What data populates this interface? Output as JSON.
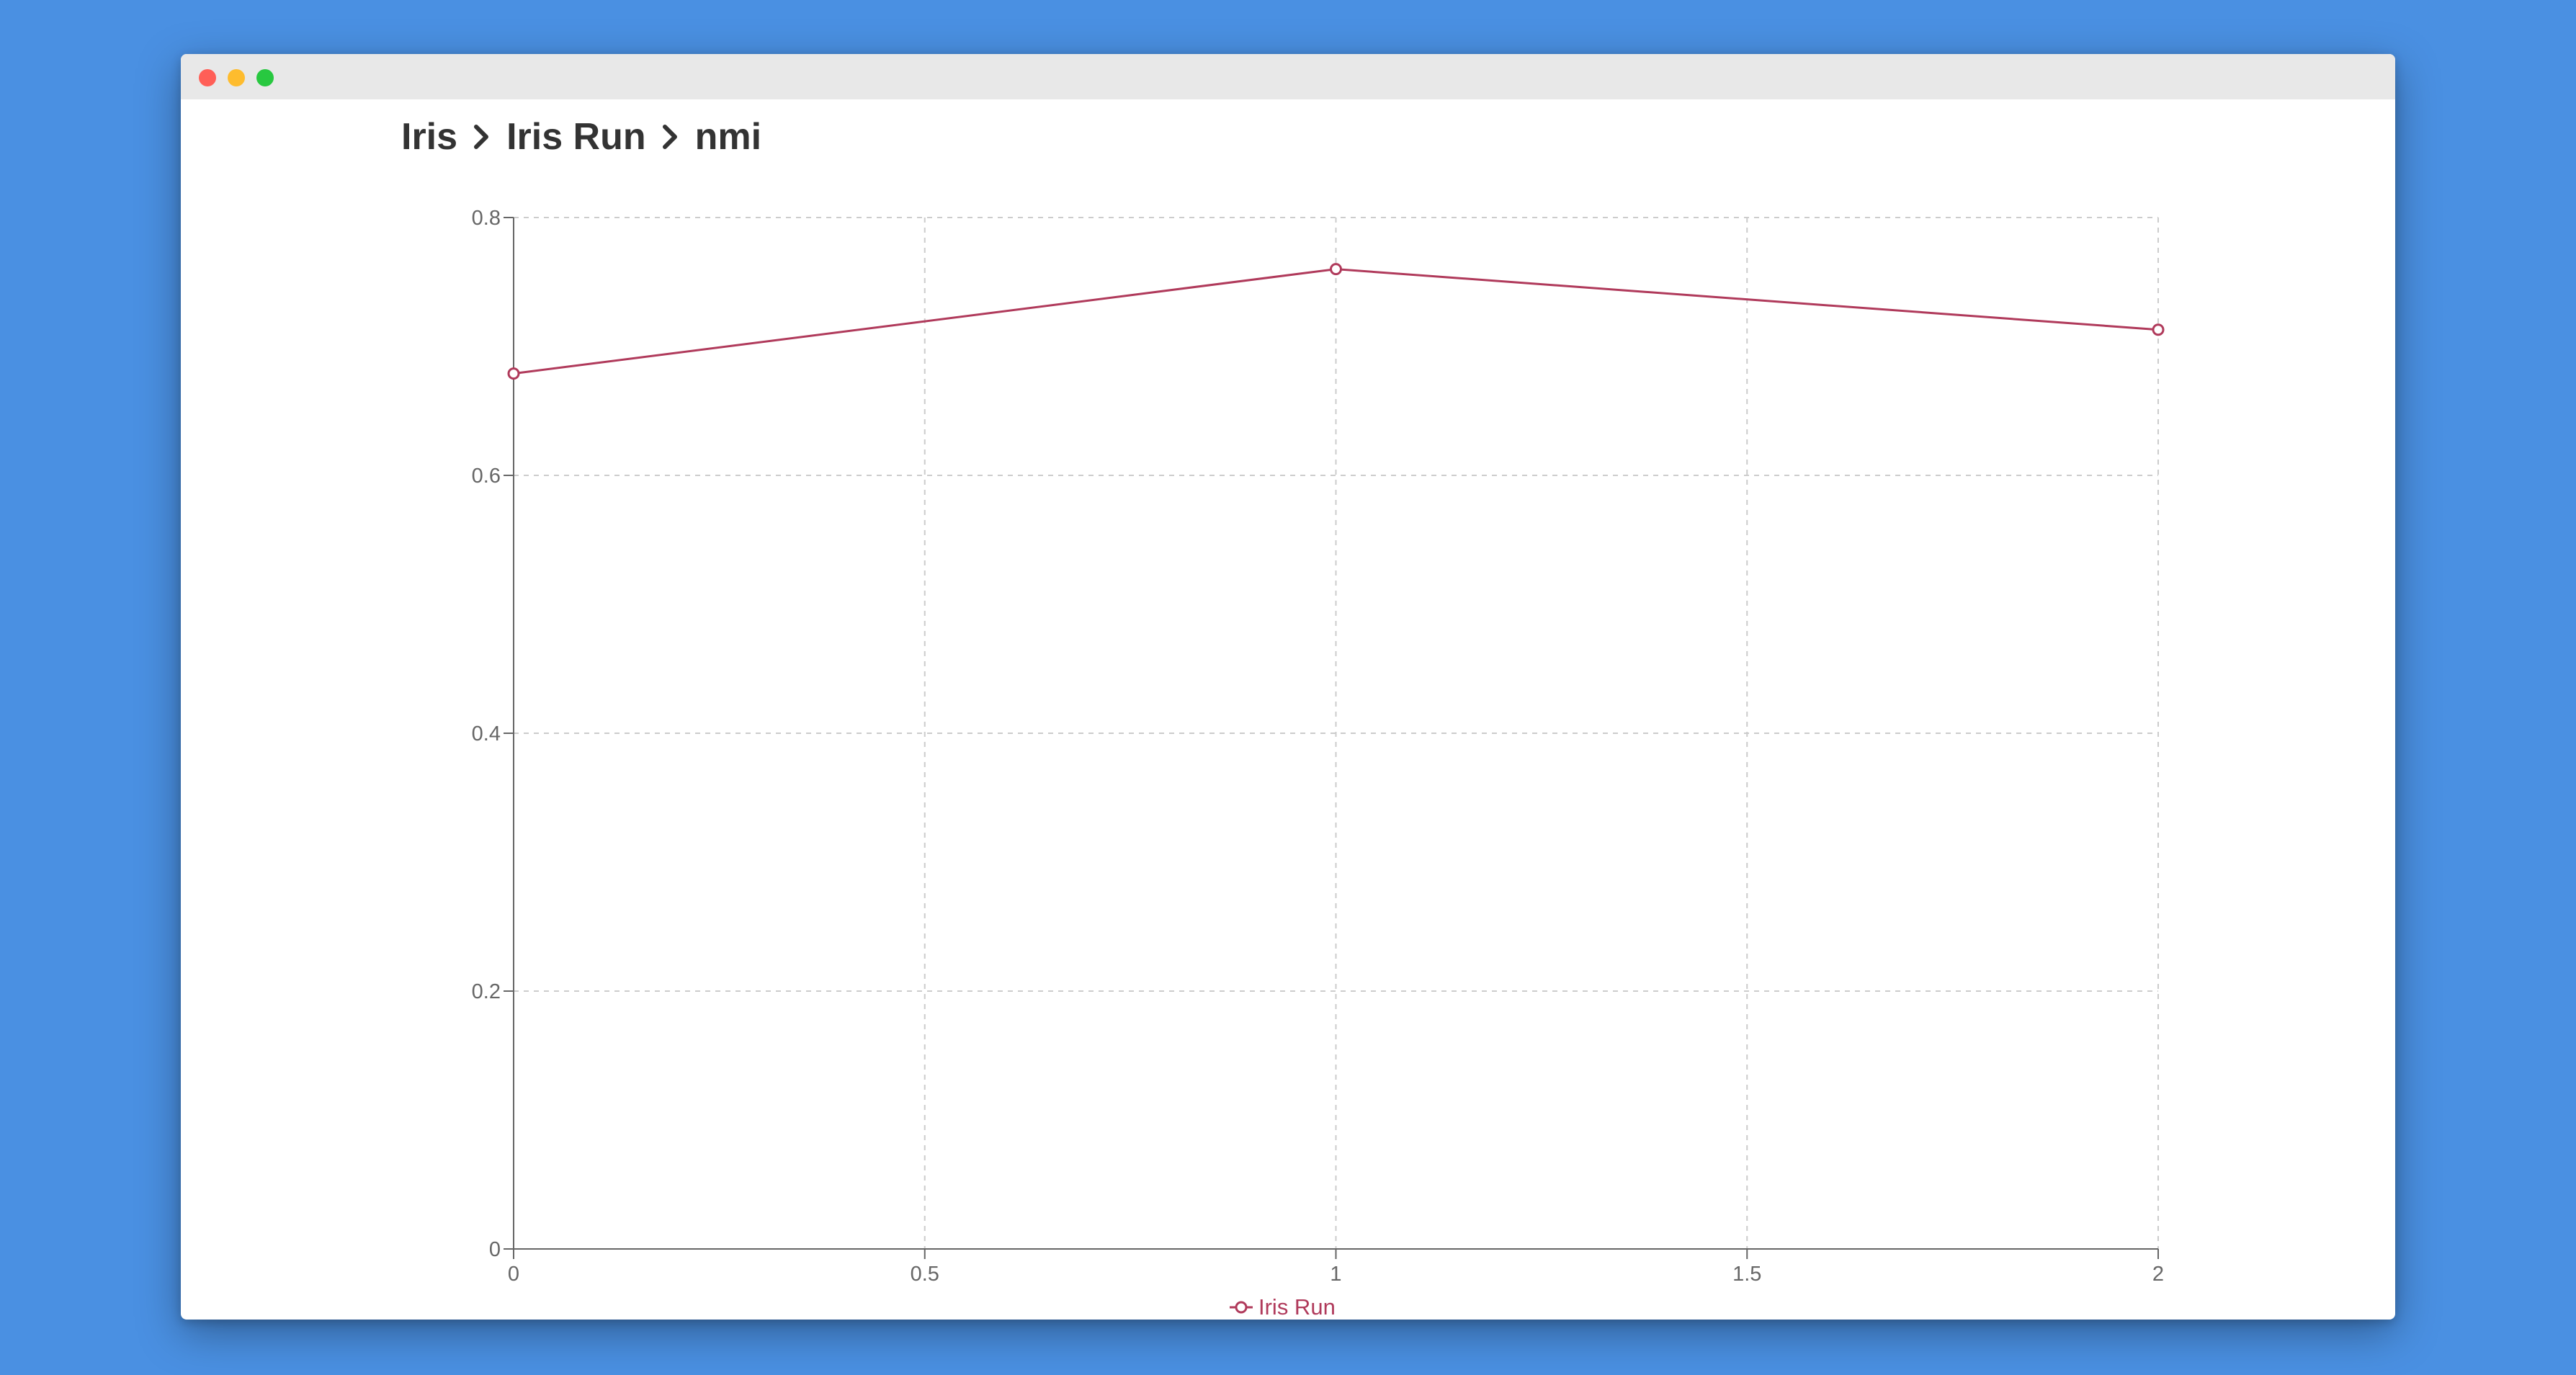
{
  "window": {
    "controls": [
      "close",
      "minimize",
      "maximize"
    ]
  },
  "breadcrumb": {
    "items": [
      "Iris",
      "Iris Run",
      "nmi"
    ],
    "separator_icon": "chevron-right-icon"
  },
  "chart_data": {
    "type": "line",
    "x": [
      0,
      1,
      2
    ],
    "series": [
      {
        "name": "Iris Run",
        "values": [
          0.679,
          0.76,
          0.713
        ],
        "color": "#b03a5b"
      }
    ],
    "xlim": [
      0,
      2
    ],
    "ylim": [
      0,
      0.8
    ],
    "xticks": [
      0,
      0.5,
      1,
      1.5,
      2
    ],
    "yticks": [
      0,
      0.2,
      0.4,
      0.6,
      0.8
    ],
    "xtick_labels": [
      "0",
      "0.5",
      "1",
      "1.5",
      "2"
    ],
    "ytick_labels": [
      "0",
      "0.2",
      "0.4",
      "0.6",
      "0.8"
    ],
    "grid": true,
    "legend_position": "bottom-center",
    "colors": {
      "axis": "#666666",
      "grid": "#cccccc"
    }
  }
}
